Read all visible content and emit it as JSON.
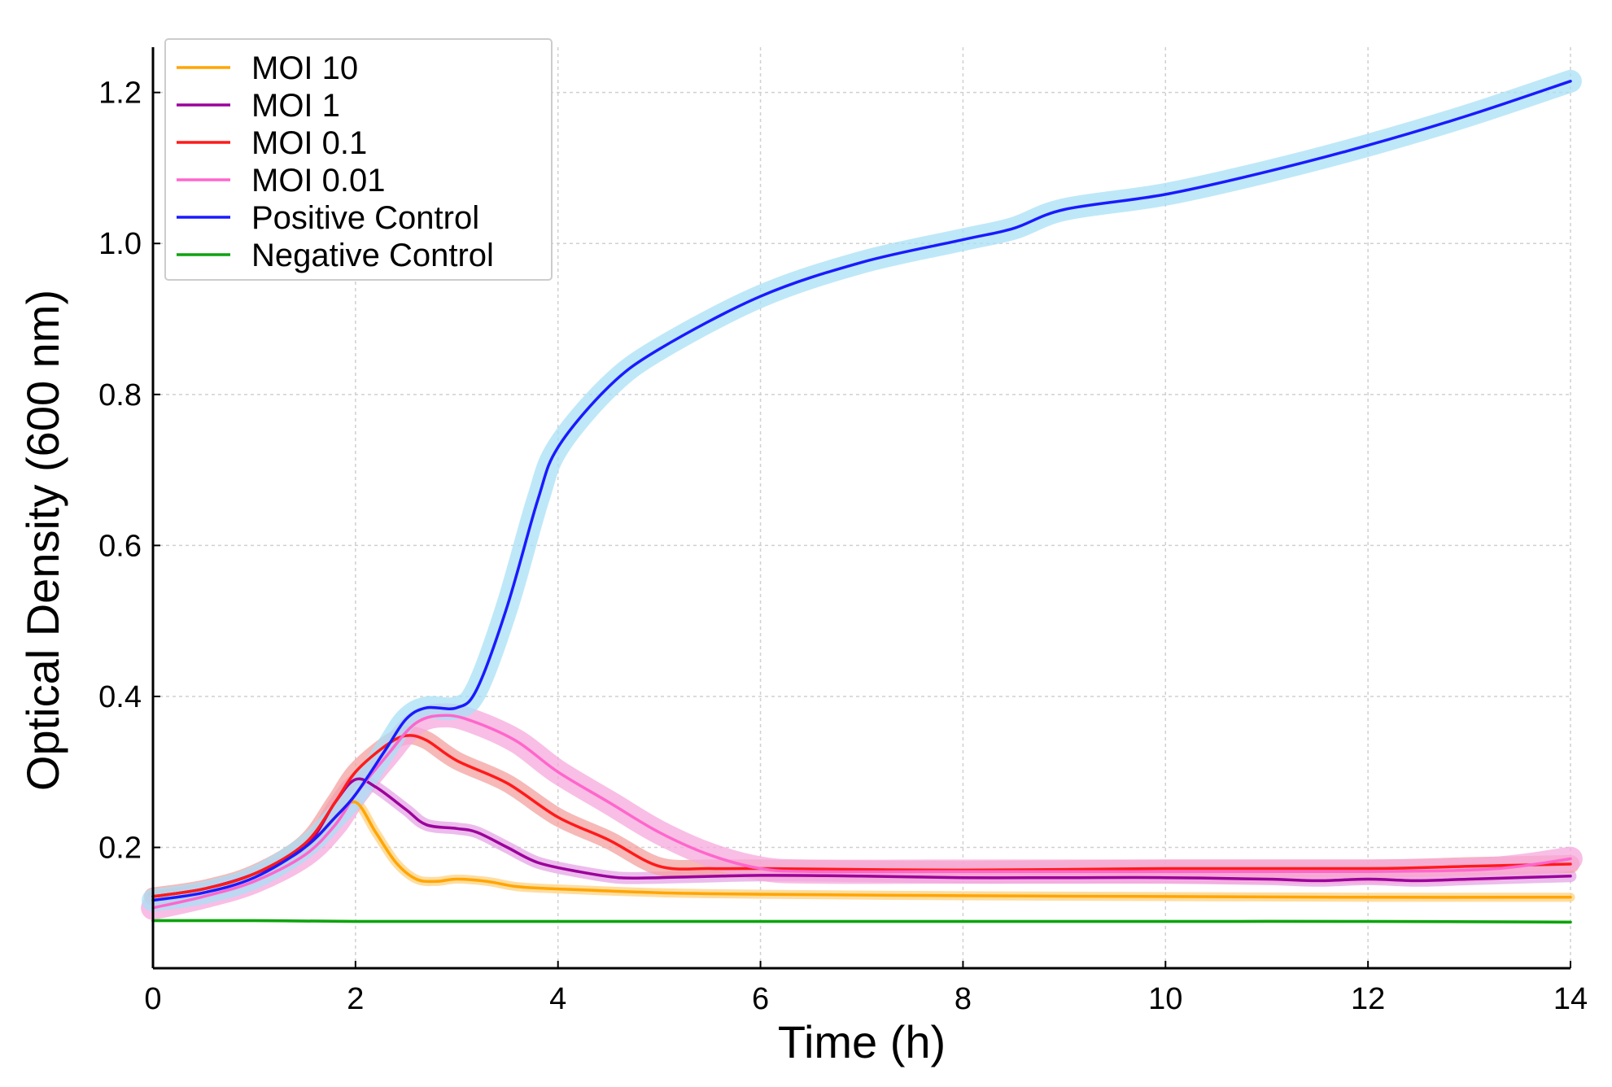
{
  "chart_data": {
    "type": "line",
    "title": "",
    "xlabel": "Time (h)",
    "ylabel": "Optical Density (600 nm)",
    "xlim": [
      0,
      14
    ],
    "ylim": [
      0.04,
      1.26
    ],
    "xticks": [
      0,
      2,
      4,
      6,
      8,
      10,
      12,
      14
    ],
    "xtick_labels": [
      "0",
      "2",
      "4",
      "6",
      "8",
      "10",
      "12",
      "14"
    ],
    "yticks": [
      0.2,
      0.4,
      0.6,
      0.8,
      1.0,
      1.2
    ],
    "ytick_labels": [
      "0.2",
      "0.4",
      "0.6",
      "0.8",
      "1.0",
      "1.2"
    ],
    "grid": true,
    "legend_position": "top-left",
    "series": [
      {
        "name": "MOI 10",
        "color": "#FFA500",
        "band_color": "#FFD27F",
        "band_width": 0.006,
        "points": [
          [
            0,
            0.135
          ],
          [
            0.5,
            0.145
          ],
          [
            1,
            0.165
          ],
          [
            1.5,
            0.2
          ],
          [
            1.8,
            0.24
          ],
          [
            2.0,
            0.26
          ],
          [
            2.2,
            0.22
          ],
          [
            2.4,
            0.18
          ],
          [
            2.6,
            0.158
          ],
          [
            2.8,
            0.155
          ],
          [
            3.0,
            0.158
          ],
          [
            3.3,
            0.155
          ],
          [
            3.6,
            0.148
          ],
          [
            4,
            0.145
          ],
          [
            5,
            0.14
          ],
          [
            6,
            0.138
          ],
          [
            8,
            0.136
          ],
          [
            10,
            0.135
          ],
          [
            12,
            0.134
          ],
          [
            14,
            0.134
          ]
        ]
      },
      {
        "name": "MOI 1",
        "color": "#9B009B",
        "band_color": "#E6A6E6",
        "band_width": 0.008,
        "points": [
          [
            0,
            0.135
          ],
          [
            0.5,
            0.145
          ],
          [
            1,
            0.165
          ],
          [
            1.5,
            0.2
          ],
          [
            1.8,
            0.26
          ],
          [
            2.0,
            0.29
          ],
          [
            2.2,
            0.28
          ],
          [
            2.5,
            0.25
          ],
          [
            2.7,
            0.23
          ],
          [
            3.0,
            0.225
          ],
          [
            3.2,
            0.22
          ],
          [
            3.5,
            0.2
          ],
          [
            3.8,
            0.18
          ],
          [
            4.2,
            0.168
          ],
          [
            4.6,
            0.16
          ],
          [
            5,
            0.16
          ],
          [
            6,
            0.163
          ],
          [
            7,
            0.162
          ],
          [
            8,
            0.16
          ],
          [
            9,
            0.16
          ],
          [
            10,
            0.16
          ],
          [
            11,
            0.158
          ],
          [
            11.5,
            0.156
          ],
          [
            12,
            0.158
          ],
          [
            12.5,
            0.156
          ],
          [
            13,
            0.158
          ],
          [
            14,
            0.162
          ]
        ]
      },
      {
        "name": "MOI 0.1",
        "color": "#FF1A1A",
        "band_color": "#F4A0A0",
        "band_width": 0.012,
        "points": [
          [
            0,
            0.135
          ],
          [
            0.5,
            0.145
          ],
          [
            1,
            0.165
          ],
          [
            1.5,
            0.205
          ],
          [
            1.8,
            0.26
          ],
          [
            2.0,
            0.3
          ],
          [
            2.3,
            0.335
          ],
          [
            2.5,
            0.348
          ],
          [
            2.7,
            0.342
          ],
          [
            3.0,
            0.315
          ],
          [
            3.5,
            0.285
          ],
          [
            4,
            0.24
          ],
          [
            4.5,
            0.21
          ],
          [
            5,
            0.175
          ],
          [
            5.5,
            0.172
          ],
          [
            6,
            0.172
          ],
          [
            8,
            0.17
          ],
          [
            10,
            0.172
          ],
          [
            12,
            0.172
          ],
          [
            13,
            0.175
          ],
          [
            14,
            0.178
          ]
        ]
      },
      {
        "name": "MOI 0.01",
        "color": "#FF66CC",
        "band_color": "#F7A8DC",
        "band_width": 0.016,
        "points": [
          [
            0,
            0.12
          ],
          [
            0.5,
            0.135
          ],
          [
            1,
            0.155
          ],
          [
            1.5,
            0.19
          ],
          [
            1.8,
            0.23
          ],
          [
            2.0,
            0.27
          ],
          [
            2.3,
            0.32
          ],
          [
            2.6,
            0.365
          ],
          [
            2.9,
            0.375
          ],
          [
            3.2,
            0.365
          ],
          [
            3.6,
            0.34
          ],
          [
            4,
            0.3
          ],
          [
            4.5,
            0.26
          ],
          [
            5,
            0.22
          ],
          [
            5.5,
            0.19
          ],
          [
            6,
            0.172
          ],
          [
            6.5,
            0.168
          ],
          [
            8,
            0.168
          ],
          [
            10,
            0.168
          ],
          [
            12,
            0.168
          ],
          [
            13,
            0.17
          ],
          [
            13.5,
            0.175
          ],
          [
            14,
            0.185
          ]
        ]
      },
      {
        "name": "Positive Control",
        "color": "#1A1AFF",
        "band_color": "#A8E0F5",
        "band_width": 0.015,
        "points": [
          [
            0,
            0.13
          ],
          [
            0.5,
            0.14
          ],
          [
            1,
            0.16
          ],
          [
            1.5,
            0.2
          ],
          [
            1.8,
            0.24
          ],
          [
            2.0,
            0.27
          ],
          [
            2.3,
            0.33
          ],
          [
            2.5,
            0.37
          ],
          [
            2.7,
            0.385
          ],
          [
            3.0,
            0.385
          ],
          [
            3.2,
            0.41
          ],
          [
            3.5,
            0.52
          ],
          [
            3.8,
            0.66
          ],
          [
            4,
            0.73
          ],
          [
            4.5,
            0.81
          ],
          [
            5,
            0.86
          ],
          [
            6,
            0.93
          ],
          [
            7,
            0.975
          ],
          [
            8,
            1.005
          ],
          [
            8.5,
            1.02
          ],
          [
            9,
            1.045
          ],
          [
            10,
            1.065
          ],
          [
            11,
            1.095
          ],
          [
            12,
            1.13
          ],
          [
            13,
            1.17
          ],
          [
            14,
            1.215
          ]
        ]
      },
      {
        "name": "Negative Control",
        "color": "#0DA40D",
        "band_color": "#A8E0A8",
        "band_width": 0.002,
        "points": [
          [
            0,
            0.103
          ],
          [
            1,
            0.103
          ],
          [
            2,
            0.102
          ],
          [
            4,
            0.102
          ],
          [
            6,
            0.102
          ],
          [
            8,
            0.102
          ],
          [
            10,
            0.102
          ],
          [
            12,
            0.102
          ],
          [
            14,
            0.101
          ]
        ]
      }
    ]
  }
}
